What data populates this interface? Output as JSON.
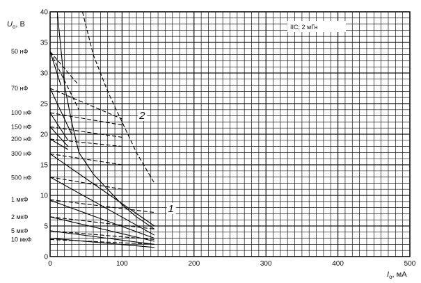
{
  "chart_data": {
    "type": "line",
    "annotation": "IIC; 2 мГн",
    "xlabel": {
      "symbol": "I",
      "sub": "o",
      "unit": ", мА"
    },
    "ylabel": {
      "symbol": "U",
      "sub": "o",
      "unit": ", В"
    },
    "xlim": [
      0,
      500
    ],
    "ylim": [
      0,
      40
    ],
    "x_ticks": [
      "0",
      "100",
      "200",
      "300",
      "400",
      "500"
    ],
    "y_ticks": [
      "0",
      "5",
      "10",
      "15",
      "20",
      "25",
      "30",
      "35",
      "40"
    ],
    "x_grid_step": 10,
    "y_grid_step": 1,
    "grid": true,
    "capacitance_labels": [
      {
        "label": "50 нФ",
        "y": 33.5
      },
      {
        "label": "70 нФ",
        "y": 27.5
      },
      {
        "label": "100 нФ",
        "y": 23.5
      },
      {
        "label": "150 нФ",
        "y": 21.2
      },
      {
        "label": "200 нФ",
        "y": 19.2
      },
      {
        "label": "300 нФ",
        "y": 16.8
      },
      {
        "label": "500 нФ",
        "y": 12.9
      },
      {
        "label": "1 мкФ",
        "y": 9.3
      },
      {
        "label": "2 мкФ",
        "y": 6.5
      },
      {
        "label": "5 мкФ",
        "y": 4.2
      },
      {
        "label": "10 мкФ",
        "y": 2.8
      }
    ],
    "series": [
      {
        "style": "solid",
        "x": [
          10,
          20,
          30,
          40,
          60,
          80,
          100,
          120,
          145
        ],
        "y": [
          40,
          28,
          22,
          17,
          13.5,
          11,
          8.5,
          6.5,
          4.5
        ]
      },
      {
        "style": "dashed",
        "x": [
          45,
          60,
          80,
          100,
          120,
          145
        ],
        "y": [
          40,
          33,
          27,
          22,
          17,
          12
        ]
      },
      {
        "style": "solid",
        "x": [
          0,
          15
        ],
        "y": [
          33.5,
          28
        ]
      },
      {
        "style": "solid",
        "x": [
          0,
          30
        ],
        "y": [
          27.5,
          20
        ]
      },
      {
        "style": "solid",
        "x": [
          0,
          25
        ],
        "y": [
          23.5,
          19
        ]
      },
      {
        "style": "solid",
        "x": [
          0,
          25
        ],
        "y": [
          21.2,
          18
        ]
      },
      {
        "style": "solid",
        "x": [
          0,
          25
        ],
        "y": [
          19.2,
          17.5
        ]
      },
      {
        "style": "solid",
        "x": [
          0,
          145
        ],
        "y": [
          16.8,
          5
        ]
      },
      {
        "style": "solid",
        "x": [
          0,
          145
        ],
        "y": [
          13,
          3.5
        ]
      },
      {
        "style": "solid",
        "x": [
          0,
          145
        ],
        "y": [
          9.2,
          3
        ]
      },
      {
        "style": "solid",
        "x": [
          0,
          145
        ],
        "y": [
          6.5,
          2.5
        ]
      },
      {
        "style": "solid",
        "x": [
          0,
          145
        ],
        "y": [
          4.2,
          2
        ]
      },
      {
        "style": "solid",
        "x": [
          0,
          145
        ],
        "y": [
          3,
          1.5
        ]
      },
      {
        "style": "dashed",
        "x": [
          0,
          40
        ],
        "y": [
          33.5,
          28
        ]
      },
      {
        "style": "dashed",
        "x": [
          0,
          40
        ],
        "y": [
          33.5,
          24
        ]
      },
      {
        "style": "dashed",
        "x": [
          0,
          100
        ],
        "y": [
          27.5,
          22.5
        ]
      },
      {
        "style": "dashed",
        "x": [
          0,
          100
        ],
        "y": [
          23.5,
          21.5
        ]
      },
      {
        "style": "dashed",
        "x": [
          0,
          100
        ],
        "y": [
          21.2,
          19.5
        ]
      },
      {
        "style": "dashed",
        "x": [
          0,
          100
        ],
        "y": [
          19.2,
          18
        ]
      },
      {
        "style": "dashed",
        "x": [
          0,
          100
        ],
        "y": [
          16.8,
          15
        ]
      },
      {
        "style": "dashed",
        "x": [
          0,
          100
        ],
        "y": [
          13,
          11
        ]
      },
      {
        "style": "dashed",
        "x": [
          0,
          145
        ],
        "y": [
          9.3,
          7.2
        ]
      },
      {
        "style": "dashed",
        "x": [
          0,
          145
        ],
        "y": [
          6.5,
          4.5
        ]
      },
      {
        "style": "dashed",
        "x": [
          0,
          145
        ],
        "y": [
          4.2,
          2.8
        ]
      },
      {
        "style": "dashed",
        "x": [
          0,
          145
        ],
        "y": [
          2.8,
          2
        ]
      }
    ],
    "curve_tags": [
      {
        "label": "2",
        "x": 128,
        "y": 22.5
      },
      {
        "label": "1",
        "x": 168,
        "y": 7.3
      }
    ]
  }
}
